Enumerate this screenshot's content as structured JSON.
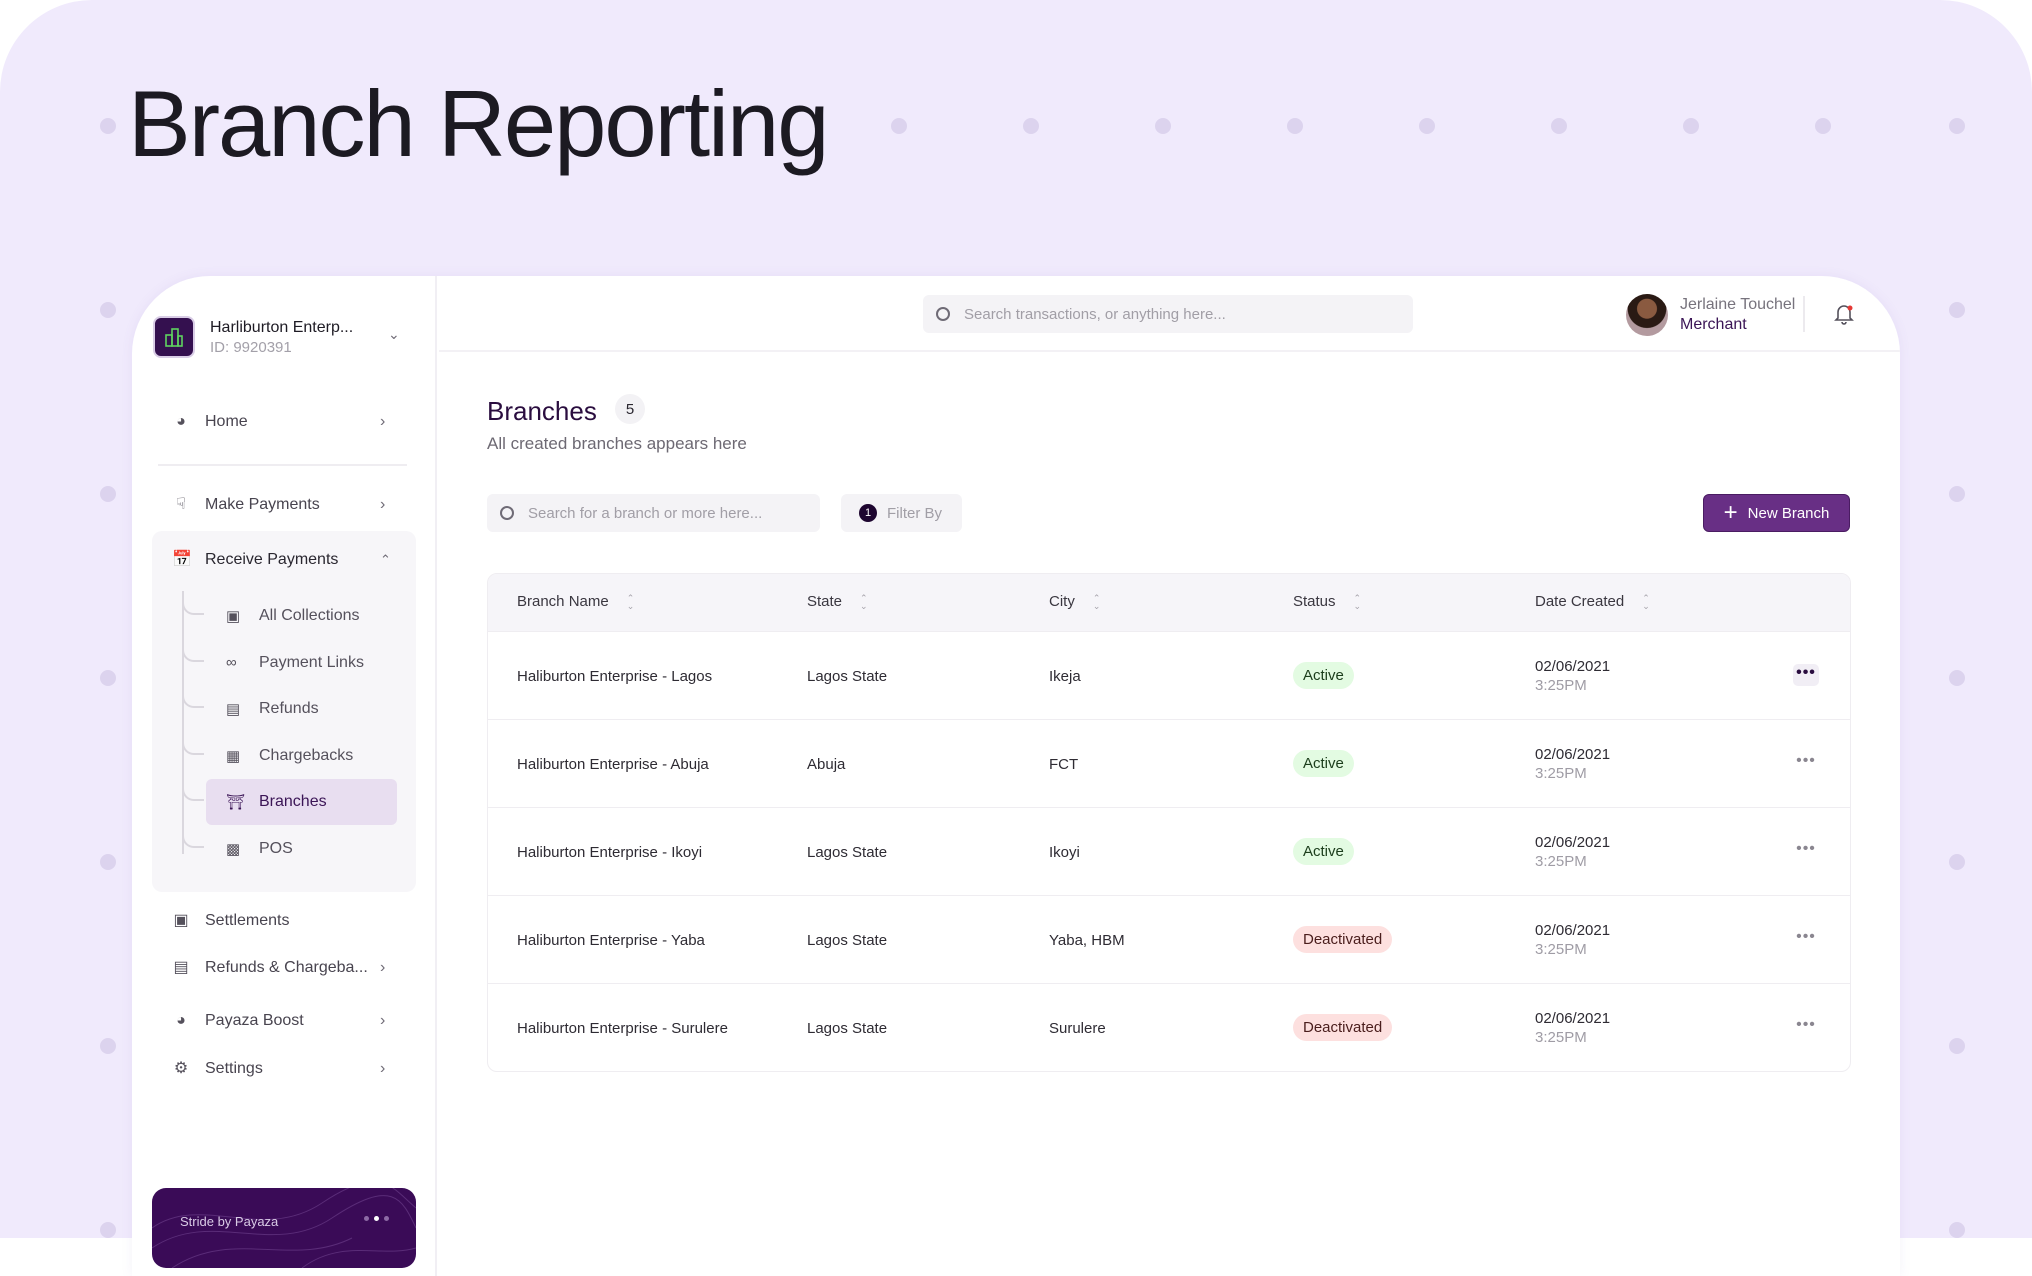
{
  "hero_title": "Branch Reporting",
  "colors": {
    "accent": "#682f85",
    "dark_purple": "#3a0b57",
    "background": "#f0eafc",
    "active_bg": "#e3fbe2",
    "deactivated_bg": "#fde0df"
  },
  "org": {
    "name": "Harliburton Enterp...",
    "id": "ID: 9920391",
    "icon": "buildings-icon"
  },
  "sidebar": {
    "home": {
      "label": "Home",
      "icon": "home-icon"
    },
    "make_payments": {
      "label": "Make Payments",
      "icon": "hand-coin-icon"
    },
    "receive_payments": {
      "label": "Receive Payments",
      "icon": "calendar-wallet-icon",
      "expanded": true,
      "items": [
        {
          "label": "All Collections",
          "icon": "collection-icon"
        },
        {
          "label": "Payment Links",
          "icon": "link-icon"
        },
        {
          "label": "Refunds",
          "icon": "refund-card-icon"
        },
        {
          "label": "Chargebacks",
          "icon": "chargeback-icon"
        },
        {
          "label": "Branches",
          "icon": "storefront-icon",
          "active": true
        },
        {
          "label": "POS",
          "icon": "pos-terminal-icon"
        }
      ]
    },
    "settlements": {
      "label": "Settlements",
      "icon": "settlement-icon"
    },
    "refunds_chargebacks": {
      "label": "Refunds & Chargeba...",
      "icon": "refund-card-icon"
    },
    "payaza_boost": {
      "label": "Payaza Boost",
      "icon": "boost-icon"
    },
    "settings": {
      "label": "Settings",
      "icon": "gear-icon"
    },
    "promo": {
      "label": "Stride by Payaza",
      "slide": 2,
      "slides": 3
    }
  },
  "header": {
    "search_placeholder": "Search transactions, or anything here...",
    "user_name": "Jerlaine Touchel",
    "user_role": "Merchant",
    "notifications": true
  },
  "main": {
    "title": "Branches",
    "count": "5",
    "subtitle": "All created branches appears here",
    "search_placeholder": "Search for a branch or more here...",
    "filter_count": "1",
    "filter_label": "Filter By",
    "new_button": "New Branch",
    "columns": [
      "Branch Name",
      "State",
      "City",
      "Status",
      "Date Created"
    ],
    "rows": [
      {
        "name": "Haliburton Enterprise - Lagos",
        "state": "Lagos State",
        "city": "Ikeja",
        "status": "Active",
        "date": "02/06/2021",
        "time": "3:25PM"
      },
      {
        "name": "Haliburton Enterprise - Abuja",
        "state": "Abuja",
        "city": "FCT",
        "status": "Active",
        "date": "02/06/2021",
        "time": "3:25PM"
      },
      {
        "name": "Haliburton Enterprise - Ikoyi",
        "state": "Lagos State",
        "city": "Ikoyi",
        "status": "Active",
        "date": "02/06/2021",
        "time": "3:25PM"
      },
      {
        "name": "Haliburton Enterprise - Yaba",
        "state": "Lagos State",
        "city": "Yaba, HBM",
        "status": "Deactivated",
        "date": "02/06/2021",
        "time": "3:25PM"
      },
      {
        "name": "Haliburton Enterprise - Surulere",
        "state": "Lagos State",
        "city": "Surulere",
        "status": "Deactivated",
        "date": "02/06/2021",
        "time": "3:25PM"
      }
    ]
  }
}
